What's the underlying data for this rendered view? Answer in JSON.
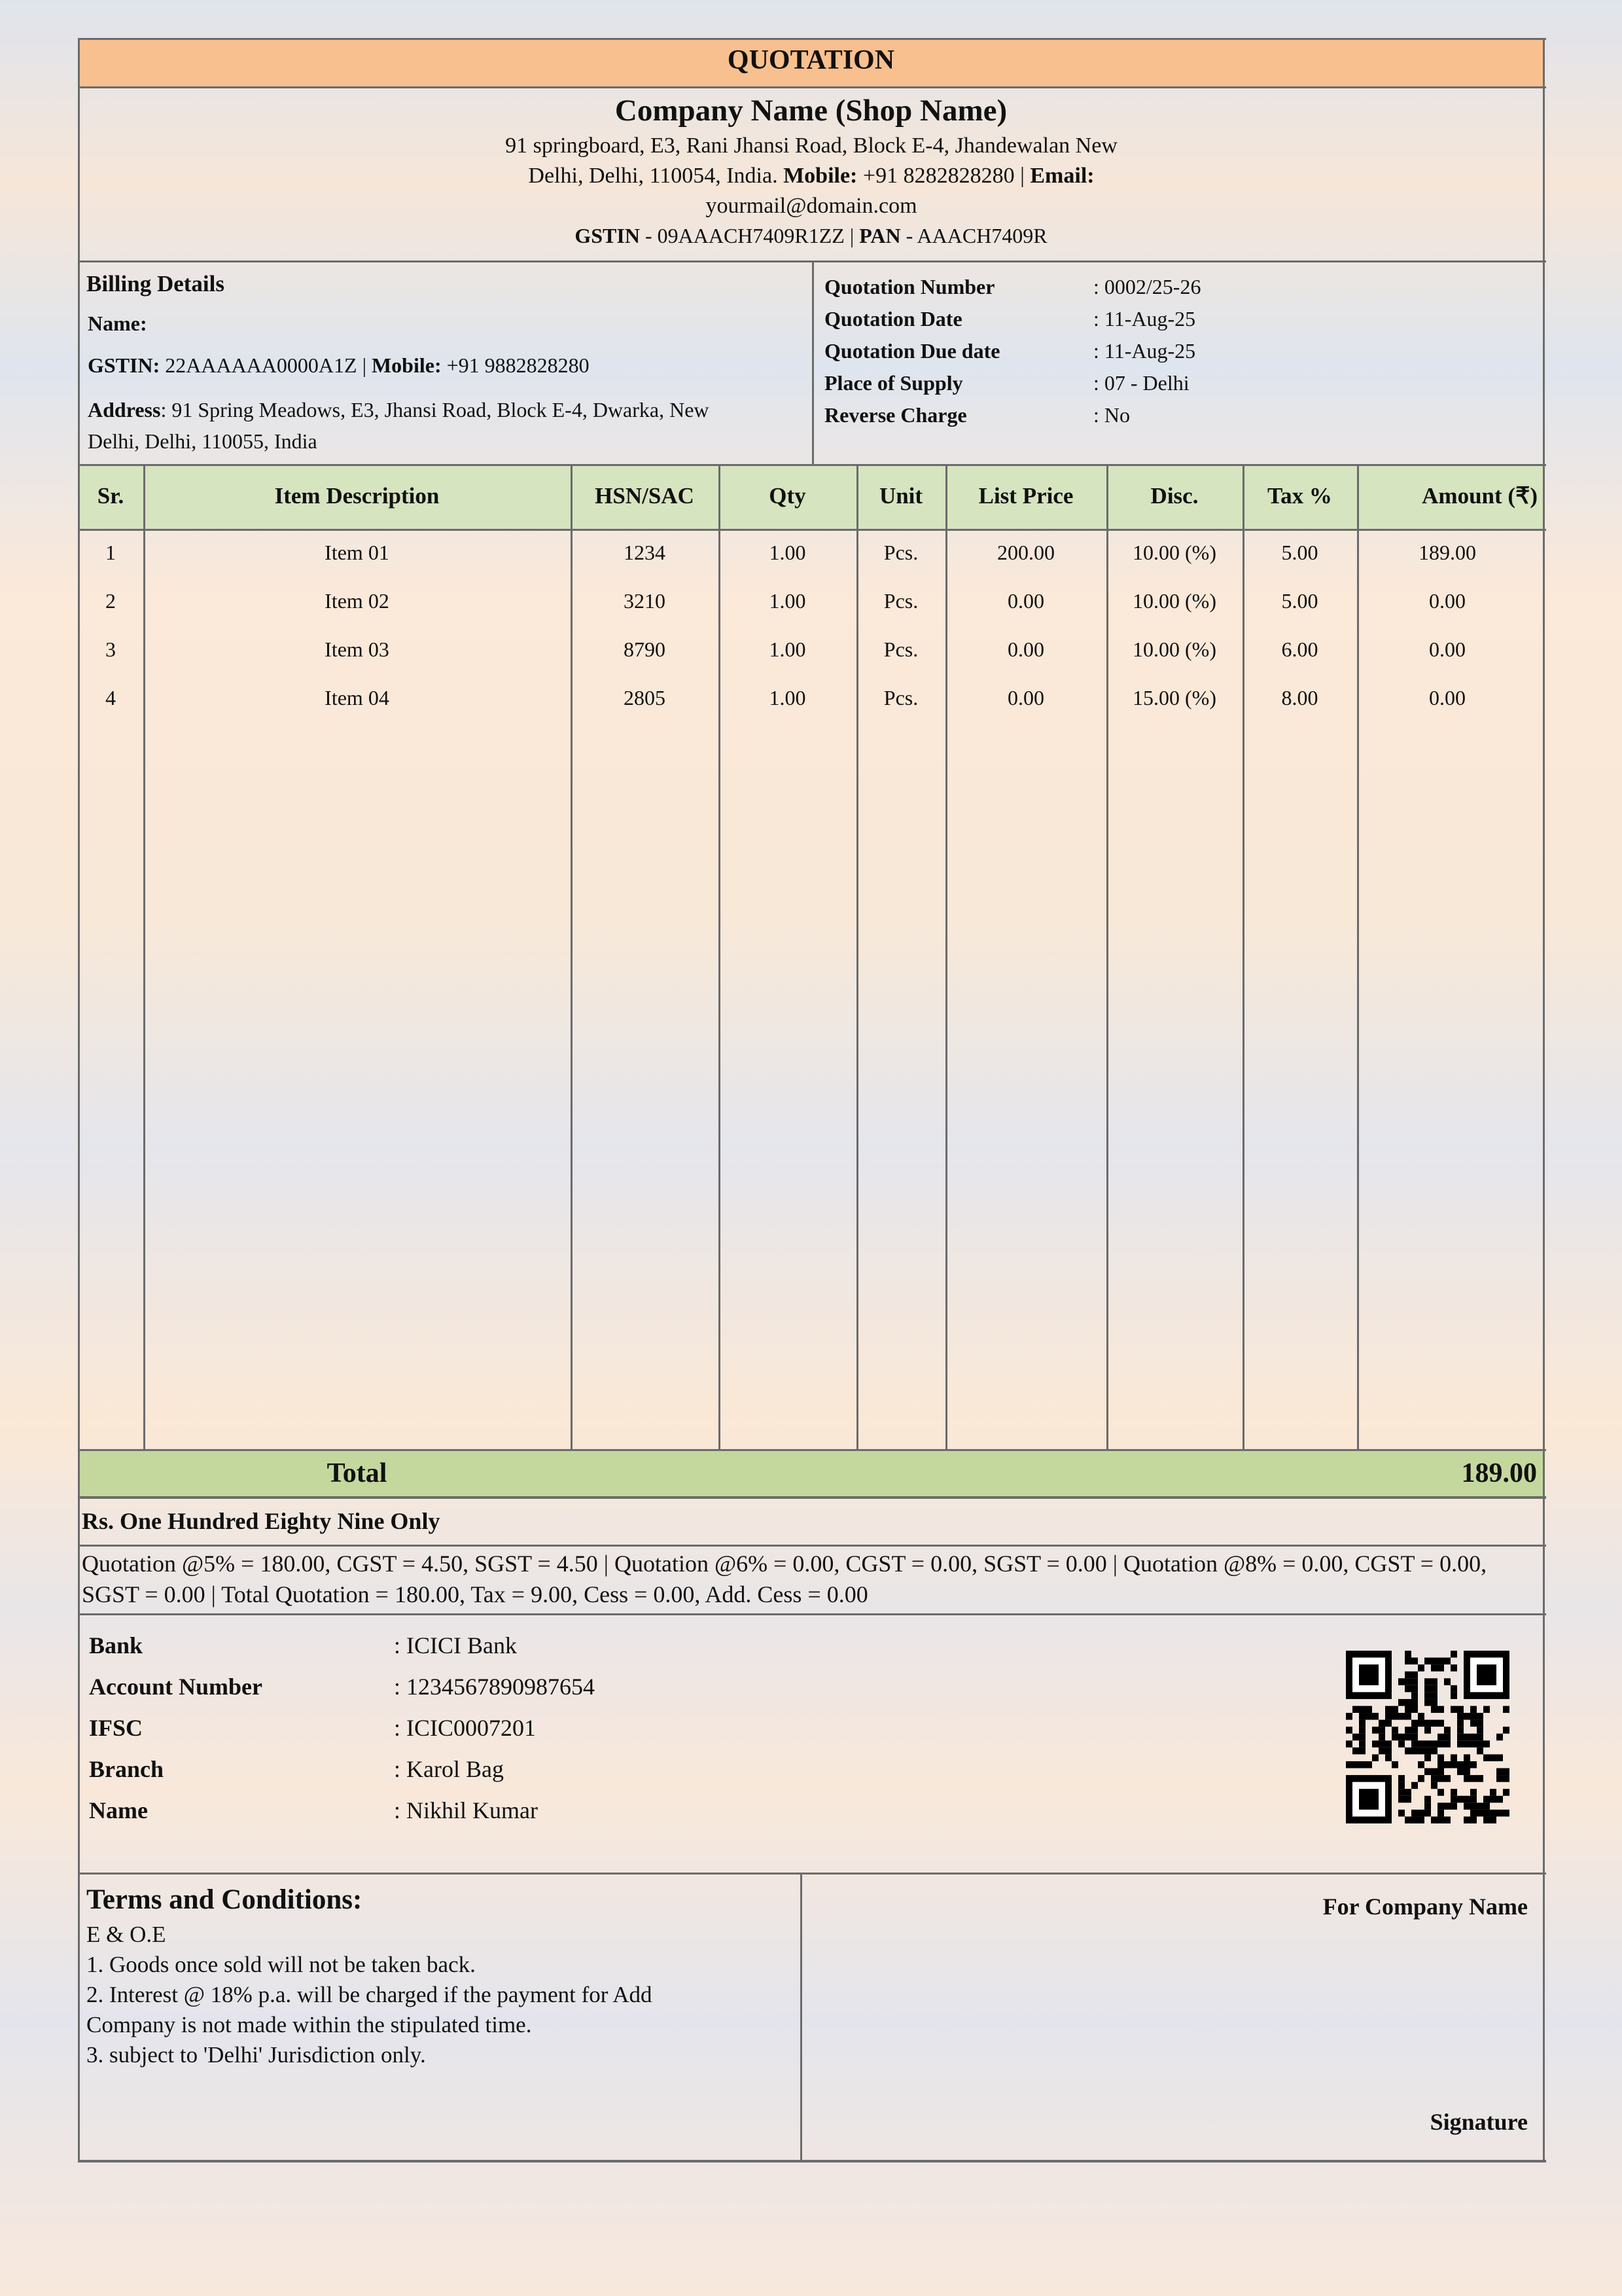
{
  "header": {
    "title": "QUOTATION"
  },
  "company": {
    "name": "Company Name (Shop Name)",
    "address": "91 springboard, E3, Rani Jhansi Road, Block E-4, Jhandewalan New Delhi, Delhi, 110054, India.",
    "mobile_label": "Mobile:",
    "mobile": "+91 8282828280 |",
    "email_label": "Email:",
    "email": "yourmail@domain.com",
    "gstin_label": "GSTIN",
    "gstin": "- 09AAACH7409R1ZZ |",
    "pan_label": "PAN",
    "pan": "- AAACH7409R"
  },
  "billing": {
    "title": "Billing Details",
    "name_label": "Name:",
    "gstin_label": "GSTIN:",
    "gstin": "22AAAAAA0000A1Z |",
    "mobile_label": "Mobile:",
    "mobile": "+91 9882828280",
    "address_label": "Address",
    "address": ": 91 Spring Meadows, E3, Jhansi Road, Block E-4, Dwarka, New Delhi, Delhi, 110055, India"
  },
  "quotation_info": [
    {
      "label": "Quotation Number",
      "value": ": 0002/25-26"
    },
    {
      "label": "Quotation Date",
      "value": ": 11-Aug-25"
    },
    {
      "label": "Quotation Due date",
      "value": ": 11-Aug-25"
    },
    {
      "label": "Place of Supply",
      "value": ": 07 - Delhi"
    },
    {
      "label": "Reverse Charge",
      "value": ": No"
    }
  ],
  "table": {
    "columns": [
      "Sr.",
      "Item Description",
      "HSN/SAC",
      "Qty",
      "Unit",
      "List Price",
      "Disc.",
      "Tax %",
      "Amount (₹)"
    ],
    "rows": [
      [
        "1",
        "Item 01",
        "1234",
        "1.00",
        "Pcs.",
        "200.00",
        "10.00 (%)",
        "5.00",
        "189.00"
      ],
      [
        "2",
        "Item 02",
        "3210",
        "1.00",
        "Pcs.",
        "0.00",
        "10.00 (%)",
        "5.00",
        "0.00"
      ],
      [
        "3",
        "Item 03",
        "8790",
        "1.00",
        "Pcs.",
        "0.00",
        "10.00 (%)",
        "6.00",
        "0.00"
      ],
      [
        "4",
        "Item 04",
        "2805",
        "1.00",
        "Pcs.",
        "0.00",
        "15.00 (%)",
        "8.00",
        "0.00"
      ]
    ]
  },
  "total": {
    "label": "Total",
    "value": "189.00"
  },
  "amount_in_words": "Rs. One Hundred Eighty Nine Only",
  "tax_summary": "Quotation @5% = 180.00, CGST = 4.50, SGST = 4.50 | Quotation @6% = 0.00, CGST = 0.00, SGST = 0.00 | Quotation @8% = 0.00, CGST = 0.00, SGST = 0.00 | Total Quotation = 180.00, Tax = 9.00, Cess = 0.00, Add. Cess = 0.00",
  "bank": [
    {
      "label": "Bank",
      "value": ": ICICI Bank"
    },
    {
      "label": "Account Number",
      "value": ": 1234567890987654"
    },
    {
      "label": "IFSC",
      "value": ": ICIC0007201"
    },
    {
      "label": "Branch",
      "value": ": Karol Bag"
    },
    {
      "label": "Name",
      "value": ": Nikhil Kumar"
    }
  ],
  "terms": {
    "title": "Terms and Conditions:",
    "lines": [
      "E & O.E",
      "1. Goods once sold will not be taken back.",
      "2. Interest @ 18% p.a. will be charged if the payment for Add Company is not made within the stipulated time.",
      "3. subject to 'Delhi' Jurisdiction only."
    ]
  },
  "signature": {
    "company": "For Company Name",
    "label": "Signature"
  }
}
